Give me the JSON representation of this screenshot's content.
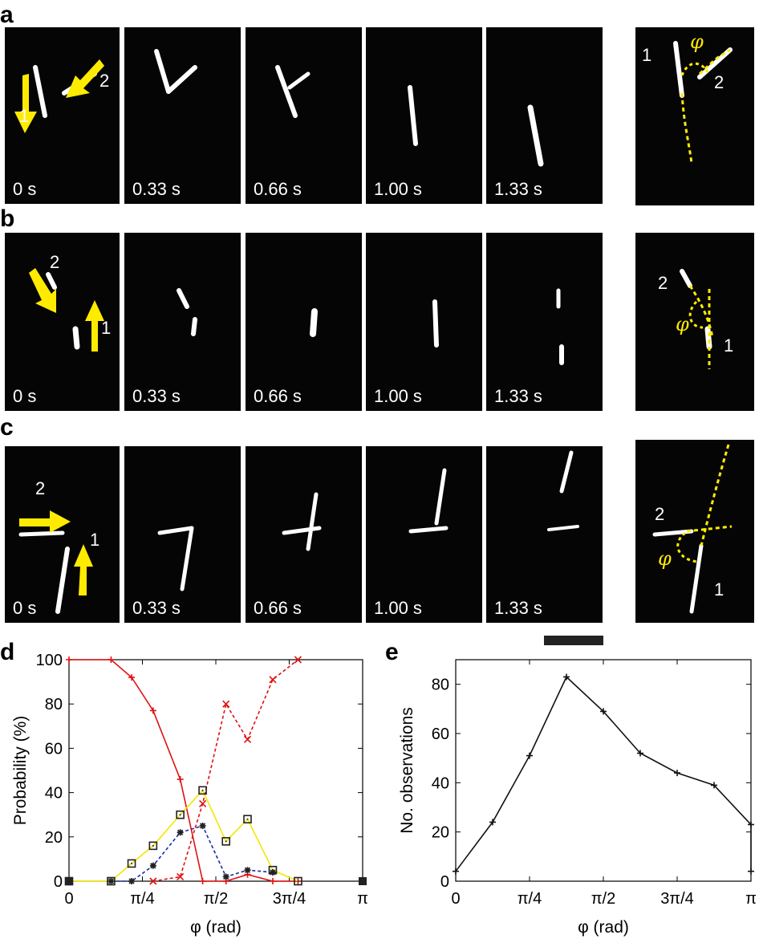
{
  "panels": {
    "a": {
      "letter": "a",
      "times": [
        "0 s",
        "0.33 s",
        "0.66 s",
        "1.00 s",
        "1.33 s"
      ],
      "labels": [
        "1",
        "2"
      ],
      "angle_symbol": "φ"
    },
    "b": {
      "letter": "b",
      "times": [
        "0 s",
        "0.33 s",
        "0.66 s",
        "1.00 s",
        "1.33 s"
      ],
      "labels": [
        "1",
        "2"
      ],
      "angle_symbol": "φ"
    },
    "c": {
      "letter": "c",
      "times": [
        "0 s",
        "0.33 s",
        "0.66 s",
        "1.00 s",
        "1.33 s"
      ],
      "labels": [
        "1",
        "2"
      ],
      "angle_symbol": "φ"
    },
    "d": {
      "letter": "d"
    },
    "e": {
      "letter": "e"
    }
  },
  "colors": {
    "arrow": "#ffeb00",
    "filament": "#ffffff",
    "background": "#050505"
  },
  "chart_data": [
    {
      "type": "line",
      "panel": "d",
      "xlabel": "φ (rad)",
      "ylabel": "Probability (%)",
      "xlim": [
        0,
        3.1416
      ],
      "ylim": [
        0,
        100
      ],
      "xticks": [
        0,
        0.7854,
        1.5708,
        2.3562,
        3.1416
      ],
      "xtick_labels": [
        "0",
        "π/4",
        "π/2",
        "3π/4",
        "π"
      ],
      "yticks": [
        0,
        20,
        40,
        60,
        80,
        100
      ],
      "ytick_labels": [
        "0",
        "20",
        "40",
        "60",
        "80",
        "100"
      ],
      "x": [
        0,
        0.2618,
        0.5236,
        0.7854,
        1.0472,
        1.309,
        1.5708,
        1.8326,
        2.0944,
        2.3562,
        2.618,
        2.8798,
        3.1416
      ],
      "series": [
        {
          "color": "#e01010",
          "style": "solid",
          "marker": "plus",
          "points": [
            [
              0,
              100
            ],
            [
              0.45,
              100
            ],
            [
              0.67,
              92
            ],
            [
              0.9,
              77
            ],
            [
              1.19,
              46
            ],
            [
              1.43,
              0
            ],
            [
              1.68,
              0
            ],
            [
              1.91,
              3
            ],
            [
              2.18,
              0
            ],
            [
              2.45,
              0
            ]
          ]
        },
        {
          "color": "#e01010",
          "style": "dashed",
          "marker": "x",
          "points": [
            [
              0.9,
              0
            ],
            [
              1.19,
              2
            ],
            [
              1.43,
              35
            ],
            [
              1.68,
              80
            ],
            [
              1.91,
              64
            ],
            [
              2.18,
              91
            ],
            [
              2.45,
              100
            ]
          ]
        },
        {
          "color": "#f5e600",
          "style": "solid",
          "marker": "square",
          "points": [
            [
              0,
              0
            ],
            [
              0.45,
              0
            ],
            [
              0.67,
              8
            ],
            [
              0.9,
              16
            ],
            [
              1.19,
              30
            ],
            [
              1.43,
              41
            ],
            [
              1.68,
              18
            ],
            [
              1.91,
              28
            ],
            [
              2.18,
              5
            ],
            [
              2.45,
              0
            ]
          ]
        },
        {
          "color": "#1a2aa0",
          "style": "dashed",
          "marker": "asterisk",
          "points": [
            [
              0.45,
              0
            ],
            [
              0.67,
              0
            ],
            [
              0.9,
              7
            ],
            [
              1.19,
              22
            ],
            [
              1.43,
              25
            ],
            [
              1.68,
              2
            ],
            [
              1.91,
              5
            ],
            [
              2.18,
              4
            ]
          ]
        }
      ],
      "endpoints": [
        [
          0,
          0
        ],
        [
          3.1416,
          0
        ]
      ]
    },
    {
      "type": "line",
      "panel": "e",
      "xlabel": "φ (rad)",
      "ylabel": "No. observations",
      "xlim": [
        0,
        3.1416
      ],
      "ylim": [
        0,
        90
      ],
      "xticks": [
        0,
        0.7854,
        1.5708,
        2.3562,
        3.1416
      ],
      "xtick_labels": [
        "0",
        "π/4",
        "π/2",
        "3π/4",
        "π"
      ],
      "yticks": [
        0,
        20,
        40,
        60,
        80
      ],
      "ytick_labels": [
        "0",
        "20",
        "40",
        "60",
        "80"
      ],
      "series": [
        {
          "color": "#111111",
          "style": "solid",
          "marker": "plus",
          "points": [
            [
              0,
              4
            ],
            [
              0.3927,
              24
            ],
            [
              0.7854,
              51
            ],
            [
              1.1781,
              83
            ],
            [
              1.5708,
              69
            ],
            [
              1.9635,
              52
            ],
            [
              2.3562,
              44
            ],
            [
              2.7489,
              39
            ],
            [
              3.1416,
              23
            ],
            [
              3.5,
              4
            ]
          ]
        }
      ]
    }
  ]
}
